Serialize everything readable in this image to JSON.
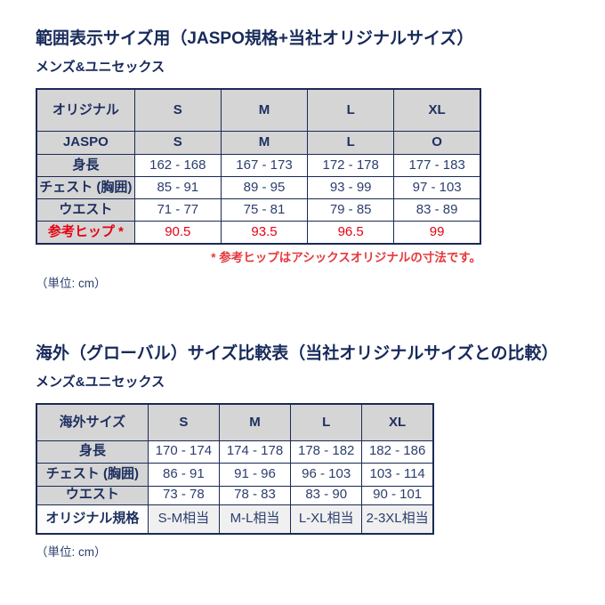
{
  "colors": {
    "navy_title": "#182a5b",
    "navy_text": "#2c3e6e",
    "border_navy": "#1b2a55",
    "header_gray": "#d5d5d5",
    "last_row_gray": "#f0f0f0",
    "accent_red": "#e60012"
  },
  "section1": {
    "title": "範囲表示サイズ用（JASPO規格+当社オリジナルサイズ）",
    "subtitle": "メンズ&ユニセックス",
    "table": {
      "header_row_original": [
        "オリジナル",
        "S",
        "M",
        "L",
        "XL"
      ],
      "header_row_jaspo": [
        "JASPO",
        "S",
        "M",
        "L",
        "O"
      ],
      "rows": [
        {
          "label": "身長",
          "values": [
            "162 - 168",
            "167 - 173",
            "172 - 178",
            "177 - 183"
          ]
        },
        {
          "label": "チェスト (胸囲)",
          "values": [
            "85 - 91",
            "89 - 95",
            "93 - 99",
            "97 - 103"
          ]
        },
        {
          "label": "ウエスト",
          "values": [
            "71 - 77",
            "75 - 81",
            "79 - 85",
            "83 - 89"
          ]
        },
        {
          "label": "参考ヒップ *",
          "values": [
            "90.5",
            "93.5",
            "96.5",
            "99"
          ]
        }
      ]
    },
    "footnote": "* 参考ヒップはアシックスオリジナルの寸法です。",
    "unit": "（単位: cm）"
  },
  "section2": {
    "title": "海外（グローバル）サイズ比較表（当社オリジナルサイズとの比較）",
    "subtitle": "メンズ&ユニセックス",
    "table": {
      "header_row": [
        "海外サイズ",
        "S",
        "M",
        "L",
        "XL"
      ],
      "rows": [
        {
          "label": "身長",
          "values": [
            "170 - 174",
            "174 - 178",
            "178 - 182",
            "182 - 186"
          ]
        },
        {
          "label": "チェスト (胸囲)",
          "values": [
            "86 - 91",
            "91 - 96",
            "96 - 103",
            "103 - 114"
          ]
        },
        {
          "label": "ウエスト",
          "values": [
            "73 - 78",
            "78 - 83",
            "83 - 90",
            "90 - 101"
          ]
        },
        {
          "label": "オリジナル規格",
          "values": [
            "S-M相当",
            "M-L相当",
            "L-XL相当",
            "2-3XL相当"
          ]
        }
      ]
    },
    "unit": "（単位: cm）"
  }
}
